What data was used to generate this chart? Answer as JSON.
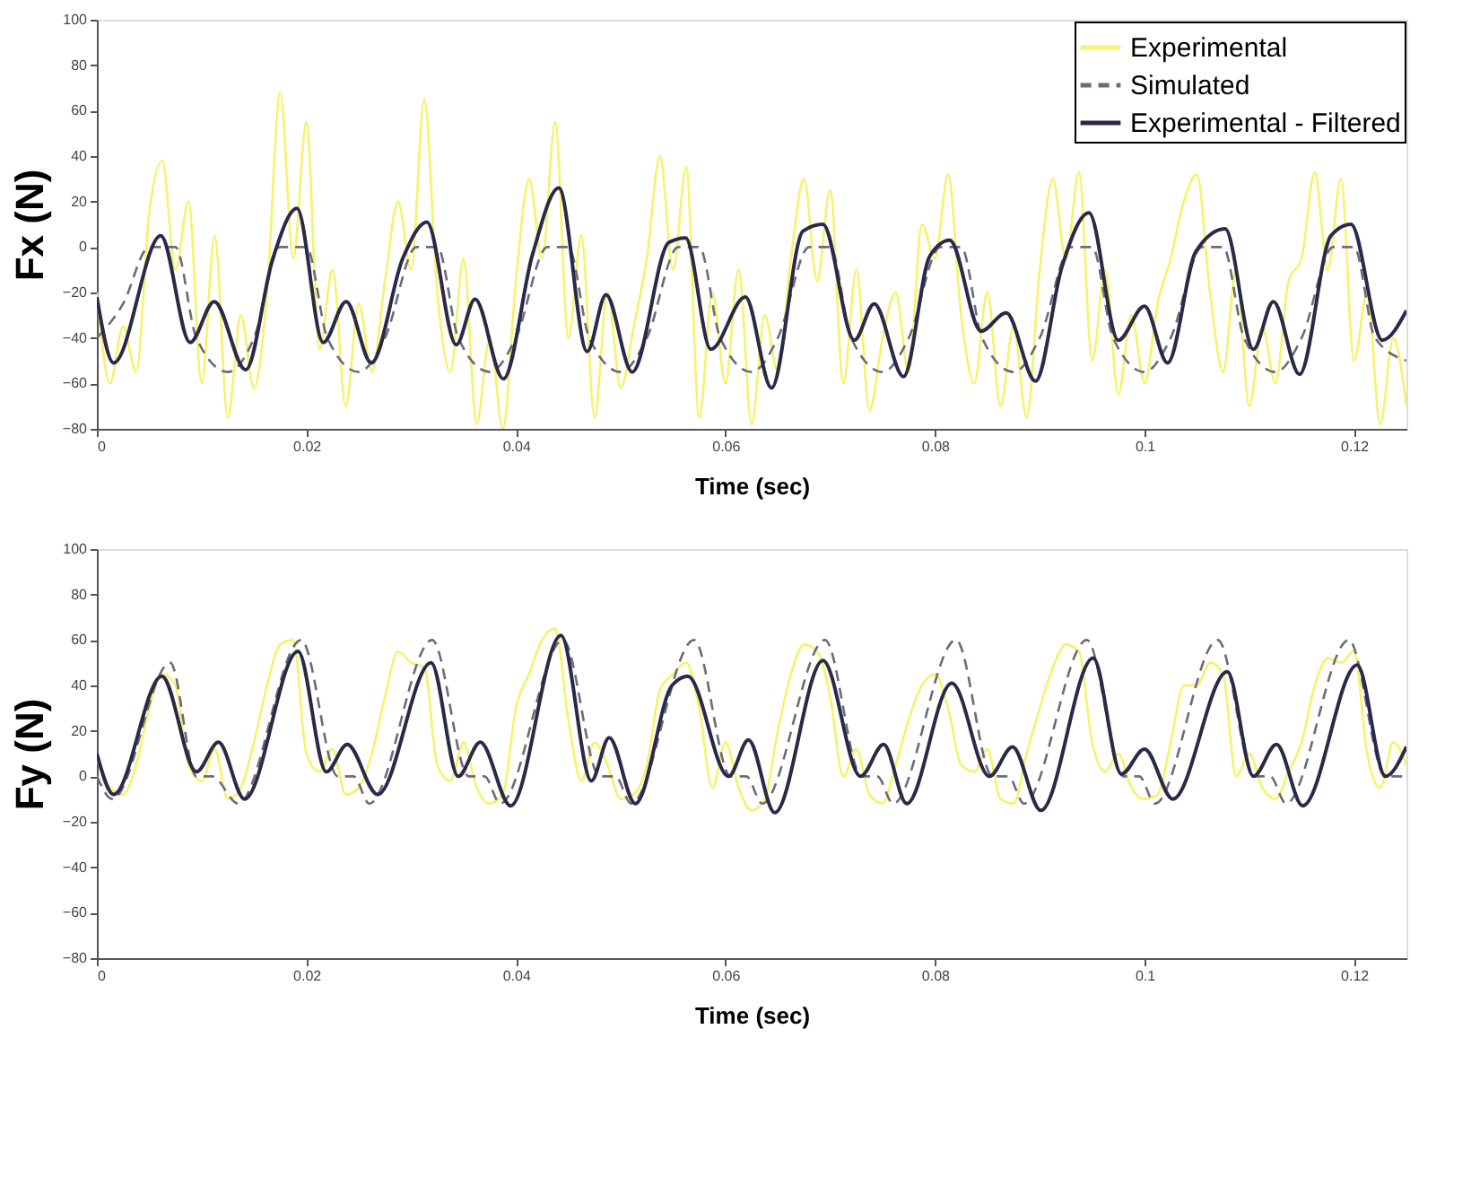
{
  "chart_data": [
    {
      "type": "line",
      "xlabel": "Time (sec)",
      "ylabel": "Fx (N)",
      "xlim": [
        0,
        0.125
      ],
      "xticks": [
        0,
        0.02,
        0.04,
        0.06,
        0.08,
        0.1,
        0.12
      ],
      "ylim": [
        -80,
        100
      ],
      "yticks": [
        -80,
        -60,
        -40,
        -20,
        0,
        20,
        40,
        60,
        80,
        100
      ],
      "grid": false,
      "legend": "top right",
      "series": [
        {
          "name": "Experimental",
          "color": "#f7f26b",
          "line_style": "solid",
          "x": [
            0,
            0.00125,
            0.0025,
            0.00375,
            0.005,
            0.00625,
            0.0075,
            0.00875,
            0.01,
            0.01125,
            0.0125,
            0.01375,
            0.015,
            0.01625,
            0.0175,
            0.01875,
            0.02,
            0.02125,
            0.0225,
            0.02375,
            0.025,
            0.02625,
            0.0275,
            0.02875,
            0.03,
            0.03125,
            0.0325,
            0.03375,
            0.035,
            0.03625,
            0.0375,
            0.03875,
            0.04,
            0.04125,
            0.0425,
            0.04375,
            0.045,
            0.04625,
            0.0475,
            0.04875,
            0.05,
            0.05125,
            0.0525,
            0.05375,
            0.055,
            0.05625,
            0.0575,
            0.05875,
            0.06,
            0.06125,
            0.0625,
            0.06375,
            0.065,
            0.06625,
            0.0675,
            0.06875,
            0.07,
            0.07125,
            0.0725,
            0.07375,
            0.075,
            0.07625,
            0.0775,
            0.07875,
            0.08,
            0.08125,
            0.0825,
            0.08375,
            0.085,
            0.08625,
            0.0875,
            0.08875,
            0.09,
            0.09125,
            0.0925,
            0.09375,
            0.095,
            0.09625,
            0.0975,
            0.09875,
            0.1,
            0.10125,
            0.1025,
            0.10375,
            0.105,
            0.10625,
            0.1075,
            0.10875,
            0.11,
            0.11125,
            0.1125,
            0.11375,
            0.115,
            0.11625,
            0.1175,
            0.11875,
            0.12,
            0.12125,
            0.1225,
            0.12375,
            0.125
          ],
          "values": [
            -20,
            -60,
            -35,
            -55,
            15,
            38,
            -10,
            20,
            -60,
            5,
            -75,
            -30,
            -62,
            -20,
            68,
            -5,
            55,
            -45,
            -10,
            -70,
            -25,
            -55,
            -15,
            20,
            -10,
            65,
            -20,
            -55,
            -5,
            -78,
            -40,
            -80,
            -15,
            30,
            -5,
            55,
            -40,
            5,
            -75,
            -20,
            -62,
            -35,
            -5,
            40,
            -10,
            35,
            -75,
            -20,
            -60,
            -10,
            -78,
            -30,
            -55,
            -5,
            30,
            -15,
            25,
            -60,
            -10,
            -72,
            -40,
            -20,
            -55,
            10,
            -5,
            32,
            -30,
            -60,
            -20,
            -70,
            -35,
            -75,
            -10,
            30,
            -5,
            33,
            -50,
            -10,
            -65,
            -30,
            -60,
            -25,
            -5,
            20,
            32,
            -20,
            -55,
            -10,
            -70,
            -35,
            -60,
            -15,
            -5,
            33,
            -10,
            30,
            -50,
            -20,
            -78,
            -40,
            -70
          ]
        },
        {
          "name": "Simulated",
          "color": "#6b6b7b",
          "line_style": "dashed",
          "x": [
            0,
            0.0025,
            0.005,
            0.0075,
            0.0095,
            0.0125,
            0.015,
            0.0175,
            0.02,
            0.022,
            0.025,
            0.0275,
            0.0305,
            0.0325,
            0.0345,
            0.0375,
            0.04,
            0.043,
            0.045,
            0.047,
            0.05,
            0.0525,
            0.0555,
            0.0575,
            0.0595,
            0.0625,
            0.065,
            0.068,
            0.07,
            0.072,
            0.075,
            0.0775,
            0.0805,
            0.0825,
            0.0845,
            0.0875,
            0.09,
            0.093,
            0.095,
            0.097,
            0.1,
            0.1025,
            0.1055,
            0.1075,
            0.1095,
            0.1125,
            0.115,
            0.118,
            0.12,
            0.122,
            0.125
          ],
          "values": [
            -40,
            -25,
            0,
            0,
            -40,
            -55,
            -40,
            0,
            0,
            -40,
            -55,
            -40,
            0,
            0,
            -40,
            -55,
            -40,
            0,
            0,
            -40,
            -55,
            -40,
            0,
            0,
            -40,
            -55,
            -40,
            0,
            0,
            -40,
            -55,
            -40,
            0,
            0,
            -40,
            -55,
            -40,
            0,
            0,
            -40,
            -55,
            -40,
            0,
            0,
            -40,
            -55,
            -40,
            0,
            0,
            -40,
            -50
          ]
        },
        {
          "name": "Experimental - Filtered",
          "color": "#2a2a48",
          "line_style": "solid",
          "x": [
            0,
            0.0016,
            0.0061,
            0.0089,
            0.0112,
            0.0142,
            0.0168,
            0.0191,
            0.0216,
            0.0238,
            0.0262,
            0.0292,
            0.0315,
            0.0343,
            0.0361,
            0.0388,
            0.0416,
            0.0441,
            0.0468,
            0.0486,
            0.0511,
            0.0546,
            0.0562,
            0.0586,
            0.0619,
            0.0644,
            0.0674,
            0.0693,
            0.0723,
            0.0742,
            0.077,
            0.0795,
            0.0814,
            0.0844,
            0.0868,
            0.0896,
            0.0921,
            0.0947,
            0.0975,
            0.1,
            0.1022,
            0.1049,
            0.1077,
            0.1104,
            0.1123,
            0.1148,
            0.1178,
            0.1197,
            0.1227,
            0.125
          ],
          "values": [
            -22,
            -51,
            5,
            -42,
            -24,
            -54,
            -5,
            17,
            -42,
            -24,
            -51,
            -5,
            11,
            -43,
            -23,
            -58,
            -3,
            26,
            -46,
            -21,
            -55,
            2,
            4,
            -45,
            -22,
            -62,
            7,
            10,
            -41,
            -25,
            -57,
            -4,
            3,
            -37,
            -29,
            -59,
            -9,
            15,
            -41,
            -26,
            -51,
            -2,
            8,
            -45,
            -24,
            -56,
            5,
            10,
            -41,
            -28
          ]
        }
      ]
    },
    {
      "type": "line",
      "xlabel": "Time (sec)",
      "ylabel": "Fy (N)",
      "xlim": [
        0,
        0.125
      ],
      "xticks": [
        0,
        0.02,
        0.04,
        0.06,
        0.08,
        0.1,
        0.12
      ],
      "ylim": [
        -80,
        100
      ],
      "yticks": [
        -80,
        -60,
        -40,
        -20,
        0,
        20,
        40,
        60,
        80,
        100
      ],
      "grid": false,
      "legend": false,
      "series": [
        {
          "color": "#f7f26b",
          "line_style": "solid",
          "x": [
            0,
            0.00125,
            0.0025,
            0.00375,
            0.005,
            0.00625,
            0.0075,
            0.00875,
            0.01,
            0.01125,
            0.0125,
            0.01375,
            0.015,
            0.01625,
            0.0175,
            0.01875,
            0.02,
            0.02125,
            0.0225,
            0.02375,
            0.025,
            0.02625,
            0.0275,
            0.02875,
            0.03,
            0.03125,
            0.0325,
            0.03375,
            0.035,
            0.03625,
            0.0375,
            0.03875,
            0.04,
            0.04125,
            0.0425,
            0.04375,
            0.045,
            0.04625,
            0.0475,
            0.04875,
            0.05,
            0.05125,
            0.0525,
            0.05375,
            0.055,
            0.05625,
            0.0575,
            0.05875,
            0.06,
            0.06125,
            0.0625,
            0.06375,
            0.065,
            0.06625,
            0.0675,
            0.06875,
            0.07,
            0.07125,
            0.0725,
            0.07375,
            0.075,
            0.07625,
            0.0775,
            0.07875,
            0.08,
            0.08125,
            0.0825,
            0.08375,
            0.085,
            0.08625,
            0.0875,
            0.08875,
            0.09,
            0.09125,
            0.0925,
            0.09375,
            0.095,
            0.09625,
            0.0975,
            0.09875,
            0.1,
            0.10125,
            0.1025,
            0.10375,
            0.105,
            0.10625,
            0.1075,
            0.10875,
            0.11,
            0.11125,
            0.1125,
            0.11375,
            0.115,
            0.11625,
            0.1175,
            0.11875,
            0.12,
            0.12125,
            0.1225,
            0.12375,
            0.125
          ],
          "values": [
            8,
            -5,
            -8,
            5,
            30,
            45,
            40,
            5,
            -2,
            12,
            -10,
            -5,
            15,
            40,
            58,
            60,
            10,
            2,
            12,
            -8,
            -5,
            10,
            35,
            55,
            50,
            48,
            5,
            -2,
            15,
            -5,
            -12,
            -8,
            30,
            45,
            60,
            65,
            25,
            -2,
            15,
            5,
            -10,
            -8,
            5,
            38,
            45,
            50,
            30,
            -5,
            15,
            -5,
            -15,
            -10,
            20,
            45,
            58,
            55,
            35,
            0,
            12,
            -8,
            -12,
            5,
            25,
            40,
            45,
            30,
            5,
            2,
            12,
            -10,
            -12,
            10,
            30,
            48,
            58,
            55,
            15,
            2,
            10,
            -5,
            -10,
            -8,
            15,
            40,
            40,
            50,
            45,
            0,
            10,
            -5,
            -10,
            2,
            15,
            40,
            52,
            50,
            55,
            10,
            -5,
            15,
            5
          ]
        },
        {
          "color": "#6b6b7b",
          "line_style": "dashed",
          "x": [
            0,
            0.0015,
            0.007,
            0.0095,
            0.011,
            0.0135,
            0.0195,
            0.023,
            0.0245,
            0.026,
            0.032,
            0.0355,
            0.037,
            0.0385,
            0.0445,
            0.048,
            0.0495,
            0.051,
            0.057,
            0.0605,
            0.062,
            0.0635,
            0.0695,
            0.073,
            0.0745,
            0.076,
            0.082,
            0.0855,
            0.087,
            0.0885,
            0.0945,
            0.098,
            0.0995,
            0.101,
            0.107,
            0.1105,
            0.112,
            0.1135,
            0.1195,
            0.123,
            0.125
          ],
          "values": [
            0,
            -10,
            50,
            0,
            0,
            -12,
            60,
            0,
            0,
            -12,
            60,
            0,
            0,
            -12,
            60,
            0,
            0,
            -12,
            60,
            0,
            0,
            -12,
            60,
            0,
            0,
            -12,
            60,
            0,
            0,
            -12,
            60,
            0,
            0,
            -12,
            60,
            0,
            0,
            -12,
            60,
            0,
            0
          ]
        },
        {
          "color": "#2a2a48",
          "line_style": "solid",
          "x": [
            0,
            0.0016,
            0.0062,
            0.0095,
            0.0116,
            0.0141,
            0.0192,
            0.0219,
            0.0239,
            0.0268,
            0.0319,
            0.0345,
            0.0366,
            0.0395,
            0.0443,
            0.0472,
            0.0489,
            0.0514,
            0.0549,
            0.0564,
            0.0603,
            0.0622,
            0.0647,
            0.0693,
            0.0729,
            0.0751,
            0.0773,
            0.0816,
            0.0852,
            0.0874,
            0.0901,
            0.0951,
            0.0978,
            0.1,
            0.1027,
            0.1079,
            0.1104,
            0.1126,
            0.1151,
            0.1203,
            0.123,
            0.125
          ],
          "values": [
            10,
            -8,
            44,
            2,
            15,
            -10,
            55,
            2,
            14,
            -8,
            50,
            0,
            15,
            -13,
            62,
            -2,
            17,
            -12,
            40,
            44,
            0,
            16,
            -16,
            51,
            0,
            14,
            -12,
            41,
            0,
            13,
            -15,
            52,
            1,
            12,
            -10,
            46,
            0,
            14,
            -13,
            49,
            0,
            13
          ]
        }
      ]
    }
  ]
}
